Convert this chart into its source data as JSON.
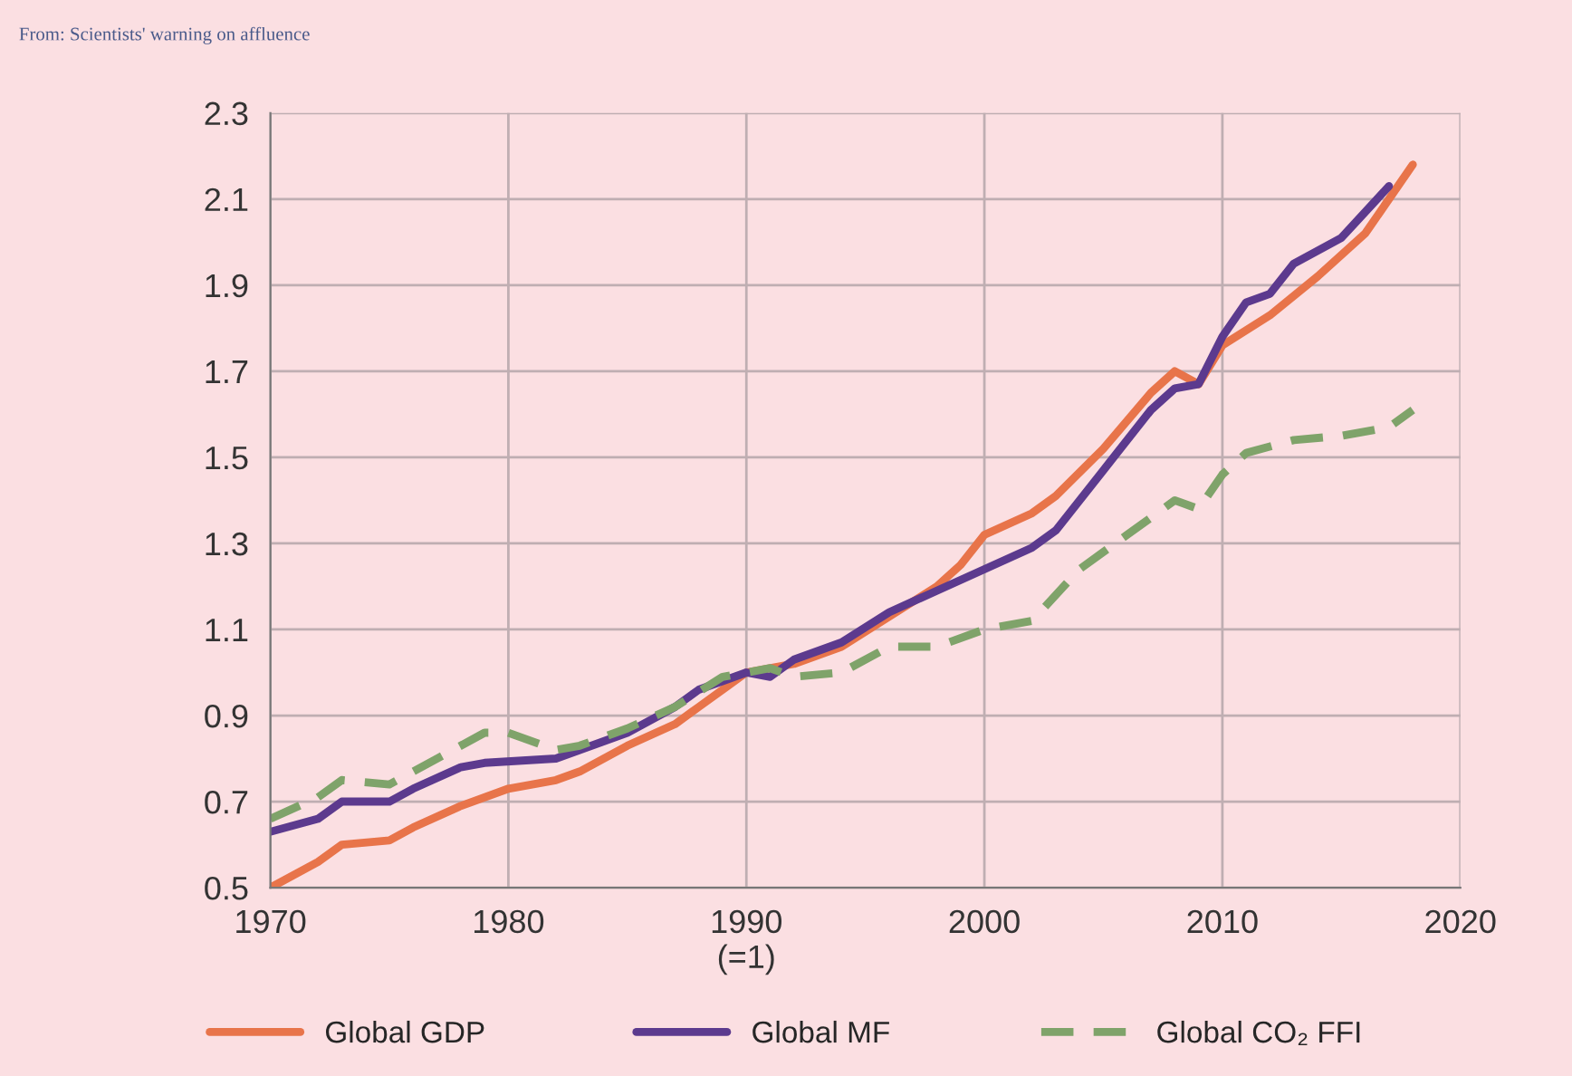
{
  "chart_data": {
    "type": "line",
    "annotations": [
      "From: Scientists' warning on affluence"
    ],
    "xlim": [
      1970,
      2020
    ],
    "xticks": [
      1970,
      1980,
      {
        "value": 1990,
        "label": "1990\n(=1)"
      },
      2000,
      2010,
      2020
    ],
    "ylim": [
      0.5,
      2.3
    ],
    "yticks": [
      0.5,
      0.7,
      0.9,
      1.1,
      1.3,
      1.5,
      1.7,
      1.9,
      2.1,
      2.3
    ],
    "grid": true,
    "legend": "bottom",
    "series": [
      {
        "name": "Global GDP",
        "color": "#e8744a",
        "line_style": "solid",
        "x": [
          1970,
          1972,
          1973,
          1975,
          1976,
          1978,
          1980,
          1982,
          1983,
          1985,
          1987,
          1988,
          1990,
          1992,
          1994,
          1996,
          1998,
          1999,
          2000,
          2002,
          2003,
          2005,
          2007,
          2008,
          2009,
          2010,
          2012,
          2014,
          2016,
          2018
        ],
        "values": [
          0.5,
          0.56,
          0.6,
          0.61,
          0.64,
          0.69,
          0.73,
          0.75,
          0.77,
          0.83,
          0.88,
          0.92,
          1.0,
          1.02,
          1.06,
          1.13,
          1.2,
          1.25,
          1.32,
          1.37,
          1.41,
          1.52,
          1.65,
          1.7,
          1.67,
          1.76,
          1.83,
          1.92,
          2.02,
          2.18
        ]
      },
      {
        "name": "Global MF",
        "color": "#5c3a8e",
        "line_style": "solid",
        "x": [
          1970,
          1972,
          1973,
          1975,
          1976,
          1978,
          1979,
          1982,
          1983,
          1985,
          1987,
          1988,
          1990,
          1991,
          1992,
          1994,
          1996,
          1998,
          2000,
          2002,
          2003,
          2005,
          2007,
          2008,
          2009,
          2010,
          2011,
          2012,
          2013,
          2015,
          2017
        ],
        "values": [
          0.63,
          0.66,
          0.7,
          0.7,
          0.73,
          0.78,
          0.79,
          0.8,
          0.82,
          0.86,
          0.92,
          0.96,
          1.0,
          0.99,
          1.03,
          1.07,
          1.14,
          1.19,
          1.24,
          1.29,
          1.33,
          1.47,
          1.61,
          1.66,
          1.67,
          1.78,
          1.86,
          1.88,
          1.95,
          2.01,
          2.13
        ]
      },
      {
        "name": "Global CO₂ FFI",
        "color": "#7fa36a",
        "line_style": "dashed",
        "x": [
          1970,
          1972,
          1973,
          1975,
          1977,
          1979,
          1980,
          1982,
          1983,
          1985,
          1987,
          1989,
          1991,
          1992,
          1994,
          1996,
          1998,
          2000,
          2002,
          2004,
          2006,
          2008,
          2009,
          2010,
          2011,
          2013,
          2015,
          2017,
          2018
        ],
        "values": [
          0.66,
          0.71,
          0.75,
          0.74,
          0.8,
          0.86,
          0.86,
          0.82,
          0.83,
          0.87,
          0.92,
          0.99,
          1.01,
          0.99,
          1.0,
          1.06,
          1.06,
          1.1,
          1.12,
          1.24,
          1.32,
          1.4,
          1.38,
          1.46,
          1.51,
          1.54,
          1.55,
          1.57,
          1.61
        ]
      }
    ]
  }
}
